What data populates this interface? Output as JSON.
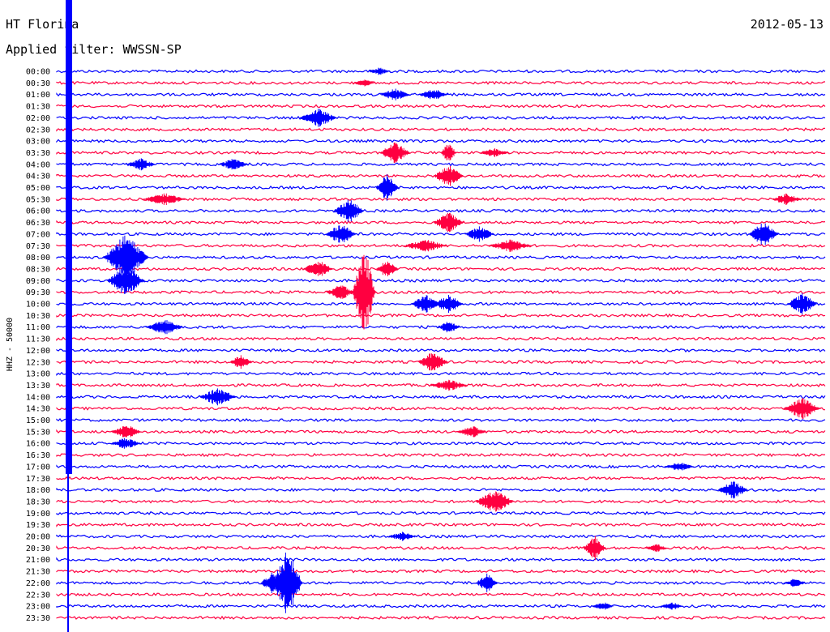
{
  "header": {
    "station": "HT Florina",
    "date": "2012-05-13",
    "filter": "Applied filter: WWSSN-SP"
  },
  "chart_data": {
    "type": "line",
    "title": "HT Florina",
    "subtitle": "Applied filter: WWSSN-SP",
    "ylabel": "HHZ - 50000",
    "colors": [
      "#0000ff",
      "#ff0040"
    ],
    "rows": [
      "00:00",
      "00:30",
      "01:00",
      "01:30",
      "02:00",
      "02:30",
      "03:00",
      "03:30",
      "04:00",
      "04:30",
      "05:00",
      "05:30",
      "06:00",
      "06:30",
      "07:00",
      "07:30",
      "08:00",
      "08:30",
      "09:00",
      "09:30",
      "10:00",
      "10:30",
      "11:00",
      "11:30",
      "12:00",
      "12:30",
      "13:00",
      "13:30",
      "14:00",
      "14:30",
      "15:00",
      "15:30",
      "16:00",
      "16:30",
      "17:00",
      "17:30",
      "18:00",
      "18:30",
      "19:00",
      "19:30",
      "20:00",
      "20:30",
      "21:00",
      "21:30",
      "22:00",
      "22:30",
      "23:00",
      "23:30"
    ],
    "events": [
      {
        "row": 0,
        "x": 0.42,
        "amp": 5,
        "w": 0.015
      },
      {
        "row": 1,
        "x": 0.4,
        "amp": 5,
        "w": 0.015
      },
      {
        "row": 2,
        "x": 0.44,
        "amp": 8,
        "w": 0.02
      },
      {
        "row": 2,
        "x": 0.49,
        "amp": 8,
        "w": 0.02
      },
      {
        "row": 4,
        "x": 0.34,
        "amp": 12,
        "w": 0.025
      },
      {
        "row": 7,
        "x": 0.44,
        "amp": 14,
        "w": 0.02
      },
      {
        "row": 7,
        "x": 0.51,
        "amp": 14,
        "w": 0.01
      },
      {
        "row": 7,
        "x": 0.57,
        "amp": 6,
        "w": 0.02
      },
      {
        "row": 8,
        "x": 0.11,
        "amp": 8,
        "w": 0.02
      },
      {
        "row": 8,
        "x": 0.23,
        "amp": 8,
        "w": 0.02
      },
      {
        "row": 9,
        "x": 0.51,
        "amp": 14,
        "w": 0.02
      },
      {
        "row": 10,
        "x": 0.43,
        "amp": 18,
        "w": 0.015
      },
      {
        "row": 11,
        "x": 0.14,
        "amp": 8,
        "w": 0.03
      },
      {
        "row": 11,
        "x": 0.95,
        "amp": 8,
        "w": 0.02
      },
      {
        "row": 12,
        "x": 0.38,
        "amp": 16,
        "w": 0.02
      },
      {
        "row": 13,
        "x": 0.51,
        "amp": 14,
        "w": 0.02
      },
      {
        "row": 14,
        "x": 0.37,
        "amp": 14,
        "w": 0.02
      },
      {
        "row": 14,
        "x": 0.55,
        "amp": 10,
        "w": 0.02
      },
      {
        "row": 14,
        "x": 0.92,
        "amp": 16,
        "w": 0.02
      },
      {
        "row": 15,
        "x": 0.48,
        "amp": 8,
        "w": 0.03
      },
      {
        "row": 15,
        "x": 0.59,
        "amp": 8,
        "w": 0.03
      },
      {
        "row": 16,
        "x": 0.09,
        "amp": 30,
        "w": 0.03
      },
      {
        "row": 17,
        "x": 0.34,
        "amp": 12,
        "w": 0.02
      },
      {
        "row": 17,
        "x": 0.43,
        "amp": 12,
        "w": 0.015
      },
      {
        "row": 18,
        "x": 0.09,
        "amp": 20,
        "w": 0.025
      },
      {
        "row": 19,
        "x": 0.37,
        "amp": 10,
        "w": 0.02
      },
      {
        "row": 19,
        "x": 0.4,
        "amp": 60,
        "w": 0.015
      },
      {
        "row": 20,
        "x": 0.48,
        "amp": 12,
        "w": 0.02
      },
      {
        "row": 20,
        "x": 0.51,
        "amp": 12,
        "w": 0.02
      },
      {
        "row": 20,
        "x": 0.97,
        "amp": 14,
        "w": 0.02
      },
      {
        "row": 22,
        "x": 0.14,
        "amp": 10,
        "w": 0.025
      },
      {
        "row": 22,
        "x": 0.51,
        "amp": 8,
        "w": 0.015
      },
      {
        "row": 25,
        "x": 0.24,
        "amp": 10,
        "w": 0.015
      },
      {
        "row": 25,
        "x": 0.49,
        "amp": 14,
        "w": 0.02
      },
      {
        "row": 27,
        "x": 0.51,
        "amp": 8,
        "w": 0.025
      },
      {
        "row": 28,
        "x": 0.21,
        "amp": 12,
        "w": 0.025
      },
      {
        "row": 29,
        "x": 0.97,
        "amp": 14,
        "w": 0.025
      },
      {
        "row": 31,
        "x": 0.09,
        "amp": 10,
        "w": 0.02
      },
      {
        "row": 31,
        "x": 0.54,
        "amp": 8,
        "w": 0.02
      },
      {
        "row": 32,
        "x": 0.09,
        "amp": 8,
        "w": 0.02
      },
      {
        "row": 34,
        "x": 0.81,
        "amp": 6,
        "w": 0.02
      },
      {
        "row": 36,
        "x": 0.88,
        "amp": 12,
        "w": 0.02
      },
      {
        "row": 37,
        "x": 0.57,
        "amp": 16,
        "w": 0.025
      },
      {
        "row": 40,
        "x": 0.45,
        "amp": 6,
        "w": 0.02
      },
      {
        "row": 41,
        "x": 0.7,
        "amp": 16,
        "w": 0.015
      },
      {
        "row": 41,
        "x": 0.78,
        "amp": 6,
        "w": 0.015
      },
      {
        "row": 44,
        "x": 0.28,
        "amp": 14,
        "w": 0.015
      },
      {
        "row": 44,
        "x": 0.3,
        "amp": 45,
        "w": 0.02
      },
      {
        "row": 44,
        "x": 0.56,
        "amp": 12,
        "w": 0.015
      },
      {
        "row": 44,
        "x": 0.96,
        "amp": 6,
        "w": 0.015
      },
      {
        "row": 46,
        "x": 0.71,
        "amp": 6,
        "w": 0.015
      },
      {
        "row": 46,
        "x": 0.8,
        "amp": 6,
        "w": 0.015
      }
    ]
  }
}
